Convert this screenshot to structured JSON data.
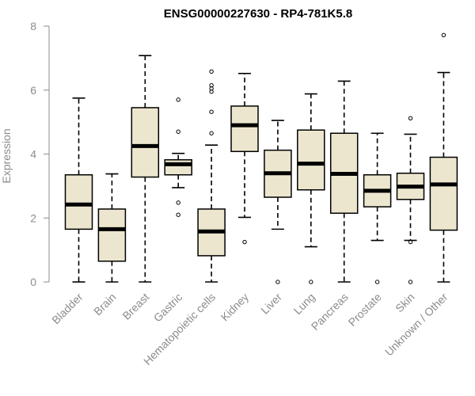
{
  "chart_data": {
    "type": "boxplot",
    "title": "ENSG00000227630 - RP4-781K5.8",
    "xlabel": "",
    "ylabel": "Expression",
    "ylim": [
      0,
      8
    ],
    "yticks": [
      0,
      2,
      4,
      6,
      8
    ],
    "box_color": "#ede6cf",
    "line_color": "#000000",
    "axis_color": "#8c8c8c",
    "categories": [
      "Bladder",
      "Brain",
      "Breast",
      "Gastric",
      "Hematopoietic cells",
      "Kidney",
      "Liver",
      "Lung",
      "Pancreas",
      "Prostate",
      "Skin",
      "Unknown / Other"
    ],
    "boxes": [
      {
        "name": "Bladder",
        "min": 0.0,
        "q1": 1.65,
        "median": 2.42,
        "q3": 3.35,
        "max": 5.75,
        "outliers": []
      },
      {
        "name": "Brain",
        "min": 0.0,
        "q1": 0.65,
        "median": 1.65,
        "q3": 2.28,
        "max": 3.38,
        "outliers": []
      },
      {
        "name": "Breast",
        "min": 0.0,
        "q1": 3.28,
        "median": 4.25,
        "q3": 5.45,
        "max": 7.08,
        "outliers": []
      },
      {
        "name": "Gastric",
        "min": 2.95,
        "q1": 3.35,
        "median": 3.68,
        "q3": 3.82,
        "max": 4.02,
        "outliers": [
          5.7,
          4.7,
          2.48,
          2.1
        ]
      },
      {
        "name": "Hematopoietic cells",
        "min": 0.0,
        "q1": 0.82,
        "median": 1.58,
        "q3": 2.28,
        "max": 4.28,
        "outliers": [
          6.58,
          6.15,
          6.05,
          5.95,
          5.32,
          4.65
        ]
      },
      {
        "name": "Kidney",
        "min": 2.02,
        "q1": 4.08,
        "median": 4.9,
        "q3": 5.5,
        "max": 6.52,
        "outliers": [
          1.25
        ]
      },
      {
        "name": "Liver",
        "min": 1.65,
        "q1": 2.65,
        "median": 3.4,
        "q3": 4.12,
        "max": 5.05,
        "outliers": [
          0.0
        ]
      },
      {
        "name": "Lung",
        "min": 1.1,
        "q1": 2.88,
        "median": 3.7,
        "q3": 4.75,
        "max": 5.88,
        "outliers": [
          0.0
        ]
      },
      {
        "name": "Pancreas",
        "min": 0.0,
        "q1": 2.15,
        "median": 3.38,
        "q3": 4.65,
        "max": 6.28,
        "outliers": []
      },
      {
        "name": "Prostate",
        "min": 1.3,
        "q1": 2.35,
        "median": 2.85,
        "q3": 3.35,
        "max": 4.65,
        "outliers": [
          0.0
        ]
      },
      {
        "name": "Skin",
        "min": 1.3,
        "q1": 2.58,
        "median": 2.98,
        "q3": 3.4,
        "max": 4.62,
        "outliers": [
          5.12,
          1.25,
          0.0
        ]
      },
      {
        "name": "Unknown / Other",
        "min": 0.0,
        "q1": 1.62,
        "median": 3.05,
        "q3": 3.9,
        "max": 6.55,
        "outliers": [
          7.72
        ]
      }
    ]
  }
}
